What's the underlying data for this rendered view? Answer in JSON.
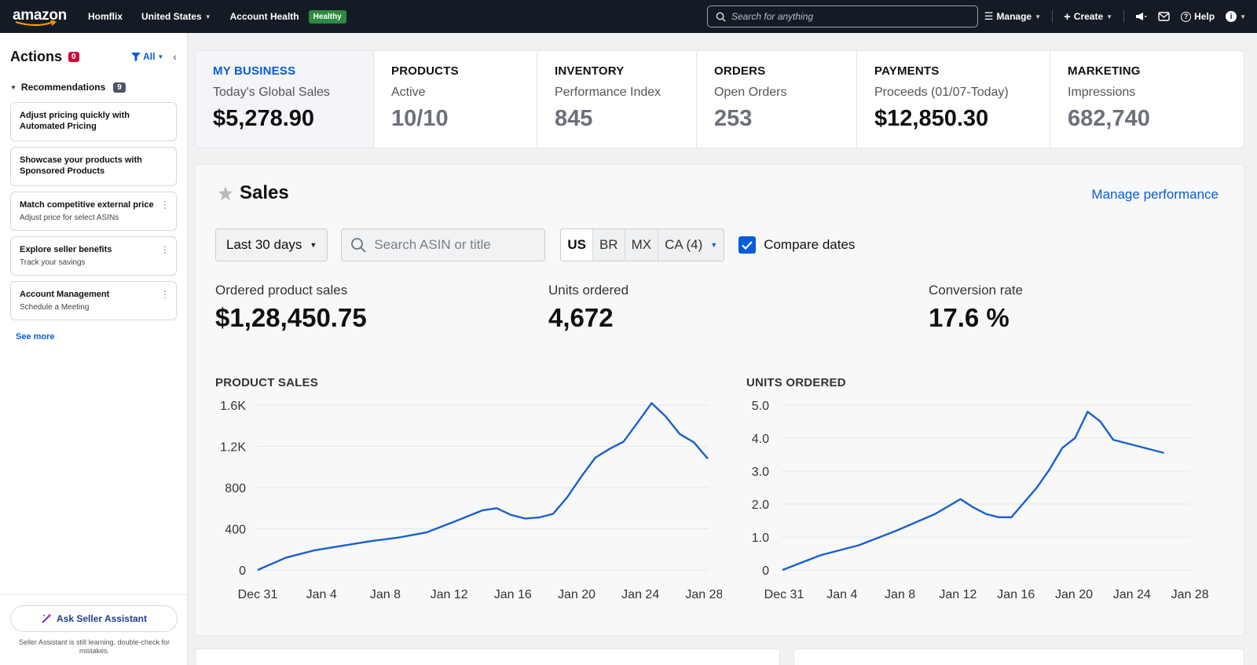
{
  "topnav": {
    "logo": "amazon",
    "store": "Homflix",
    "country": "United States",
    "account_health_label": "Account Health",
    "account_health_status": "Healthy",
    "search_placeholder": "Search for anything",
    "manage": "Manage",
    "create": "Create",
    "help": "Help"
  },
  "sidebar": {
    "title": "Actions",
    "actions_count": "0",
    "filter": "All",
    "recommendations_label": "Recommendations",
    "recommendations_count": "9",
    "cards": [
      {
        "title": "Adjust pricing quickly with Automated Pricing",
        "subtitle": ""
      },
      {
        "title": "Showcase your products with Sponsored Products",
        "subtitle": ""
      },
      {
        "title": "Match competitive external price",
        "subtitle": "Adjust price for select ASINs"
      },
      {
        "title": "Explore seller benefits",
        "subtitle": "Track your savings"
      },
      {
        "title": "Account Management",
        "subtitle": "Schedule a Meeting"
      }
    ],
    "see_more": "See more",
    "assistant_button": "Ask Seller Assistant",
    "assistant_note": "Seller Assistant is still learning, double-check for mistakes."
  },
  "metrics": [
    {
      "category": "MY BUSINESS",
      "label": "Today's Global Sales",
      "value": "$5,278.90"
    },
    {
      "category": "PRODUCTS",
      "label": "Active",
      "value": "10/10"
    },
    {
      "category": "INVENTORY",
      "label": "Performance Index",
      "value": "845"
    },
    {
      "category": "ORDERS",
      "label": "Open Orders",
      "value": "253"
    },
    {
      "category": "PAYMENTS",
      "label": "Proceeds (01/07-Today)",
      "value": "$12,850.30"
    },
    {
      "category": "MARKETING",
      "label": "Impressions",
      "value": "682,740"
    }
  ],
  "sales": {
    "title": "Sales",
    "manage_link": "Manage performance",
    "date_range": "Last 30 days",
    "search_placeholder": "Search ASIN or title",
    "marketplaces": [
      "US",
      "BR",
      "MX",
      "CA (4)"
    ],
    "compare_label": "Compare dates",
    "kpis": [
      {
        "label": "Ordered product sales",
        "value": "$1,28,450.75"
      },
      {
        "label": "Units ordered",
        "value": "4,672"
      },
      {
        "label": "Conversion rate",
        "value": "17.6 %"
      }
    ]
  },
  "colors": {
    "accent": "#0a5bd6",
    "nav_bg": "#151b25",
    "badge_green": "#2d8a3e",
    "badge_red": "#cc0c39",
    "line": "#1a5fd0"
  },
  "chart_data": [
    {
      "type": "line",
      "title": "PRODUCT SALES",
      "x_ticks": [
        "Dec 31",
        "Jan 4",
        "Jan 8",
        "Jan 12",
        "Jan 16",
        "Jan 20",
        "Jan 24",
        "Jan 28"
      ],
      "y_ticks": [
        "0",
        "400",
        "800",
        "1.2K",
        "1.6K"
      ],
      "ylim": [
        0,
        1600
      ],
      "x": [
        0,
        2,
        4,
        6,
        8,
        10,
        12,
        14,
        16,
        17,
        18,
        19,
        20,
        21,
        22,
        23,
        24,
        25,
        26,
        27,
        28,
        29,
        30,
        31,
        32
      ],
      "values": [
        0,
        120,
        190,
        235,
        280,
        315,
        365,
        470,
        580,
        600,
        535,
        500,
        510,
        545,
        705,
        905,
        1090,
        1175,
        1245,
        1430,
        1620,
        1490,
        1320,
        1240,
        1080
      ]
    },
    {
      "type": "line",
      "title": "UNITS ORDERED",
      "x_ticks": [
        "Dec 31",
        "Jan 4",
        "Jan 8",
        "Jan 12",
        "Jan 16",
        "Jan 20",
        "Jan 24",
        "Jan 28"
      ],
      "y_ticks": [
        "0",
        "1.0",
        "2.0",
        "3.0",
        "4.0",
        "5.0"
      ],
      "ylim": [
        0,
        5
      ],
      "x": [
        0,
        3,
        6,
        9,
        12,
        14,
        15,
        16,
        17,
        18,
        19,
        20,
        21,
        22,
        23,
        24,
        25,
        26,
        28,
        30
      ],
      "values": [
        0,
        0.45,
        0.75,
        1.2,
        1.7,
        2.15,
        1.9,
        1.7,
        1.6,
        1.6,
        2.05,
        2.5,
        3.05,
        3.7,
        4.0,
        4.8,
        4.5,
        3.95,
        3.75,
        3.55
      ]
    }
  ]
}
